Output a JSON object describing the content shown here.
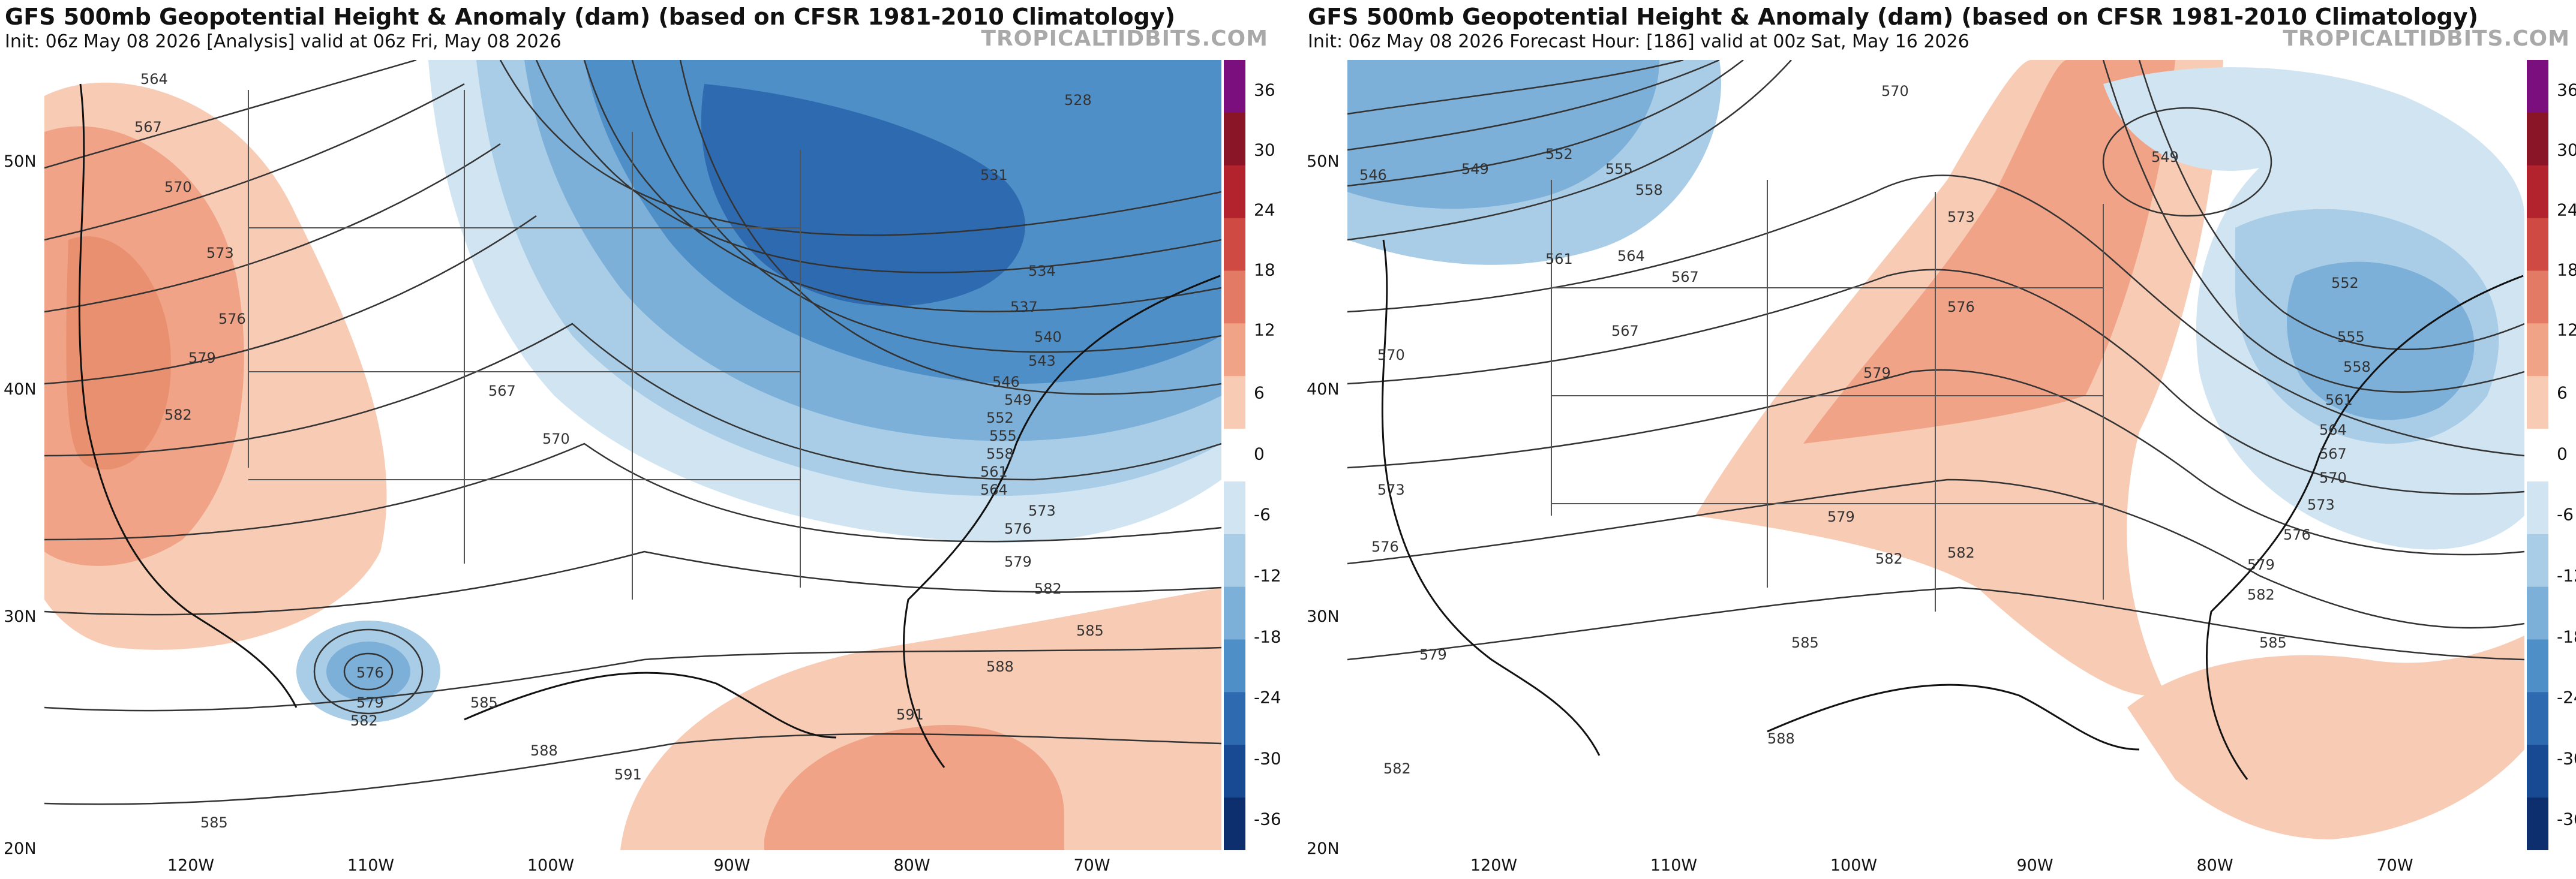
{
  "colorbar": {
    "labels": [
      "36",
      "30",
      "24",
      "18",
      "12",
      "6",
      "0",
      "-6",
      "-12",
      "-18",
      "-24",
      "-30",
      "-36"
    ],
    "colors": [
      "#7a0f7d",
      "#8a1526",
      "#b3232d",
      "#d04a44",
      "#e27a66",
      "#f0a387",
      "#f8cbb4",
      "#ffffff",
      "#d1e4f2",
      "#a9cde6",
      "#7cb0d8",
      "#4f8fc7",
      "#2e6ab0",
      "#184a94",
      "#0e2f6e"
    ]
  },
  "panels": [
    {
      "title": "GFS 500mb Geopotential Height & Anomaly (dam) (based on CFSR 1981-2010 Climatology)",
      "subtitle": "Init: 06z May 08 2026   [Analysis]   valid at 06z Fri, May 08 2026",
      "credit": "TROPICALTIDBITS.COM",
      "lat_labels": [
        "50N",
        "40N",
        "30N",
        "20N"
      ],
      "lon_labels": [
        "120W",
        "110W",
        "100W",
        "90W",
        "80W",
        "70W"
      ],
      "contour_labels": [
        "564",
        "567",
        "570",
        "573",
        "576",
        "579",
        "582",
        "585",
        "528",
        "531",
        "534",
        "537",
        "540",
        "543",
        "546",
        "549",
        "552",
        "555",
        "558",
        "561",
        "564",
        "567",
        "570",
        "573",
        "576",
        "579",
        "582",
        "585",
        "588",
        "591",
        "576",
        "579",
        "582",
        "585",
        "588",
        "591"
      ]
    },
    {
      "title": "GFS 500mb Geopotential Height & Anomaly (dam) (based on CFSR 1981-2010 Climatology)",
      "subtitle": "Init: 06z May 08 2026   Forecast Hour: [186]   valid at 00z Sat, May 16 2026",
      "credit": "TROPICALTIDBITS.COM",
      "lat_labels": [
        "50N",
        "40N",
        "30N",
        "20N"
      ],
      "lon_labels": [
        "120W",
        "110W",
        "100W",
        "90W",
        "80W",
        "70W"
      ],
      "contour_labels": [
        "546",
        "549",
        "552",
        "555",
        "558",
        "561",
        "564",
        "567",
        "570",
        "573",
        "576",
        "579",
        "582",
        "567",
        "570",
        "573",
        "576",
        "579",
        "582",
        "585",
        "549",
        "552",
        "555",
        "558",
        "561",
        "564",
        "567",
        "570",
        "573",
        "576",
        "579",
        "582",
        "585",
        "588",
        "582",
        "579"
      ]
    }
  ]
}
